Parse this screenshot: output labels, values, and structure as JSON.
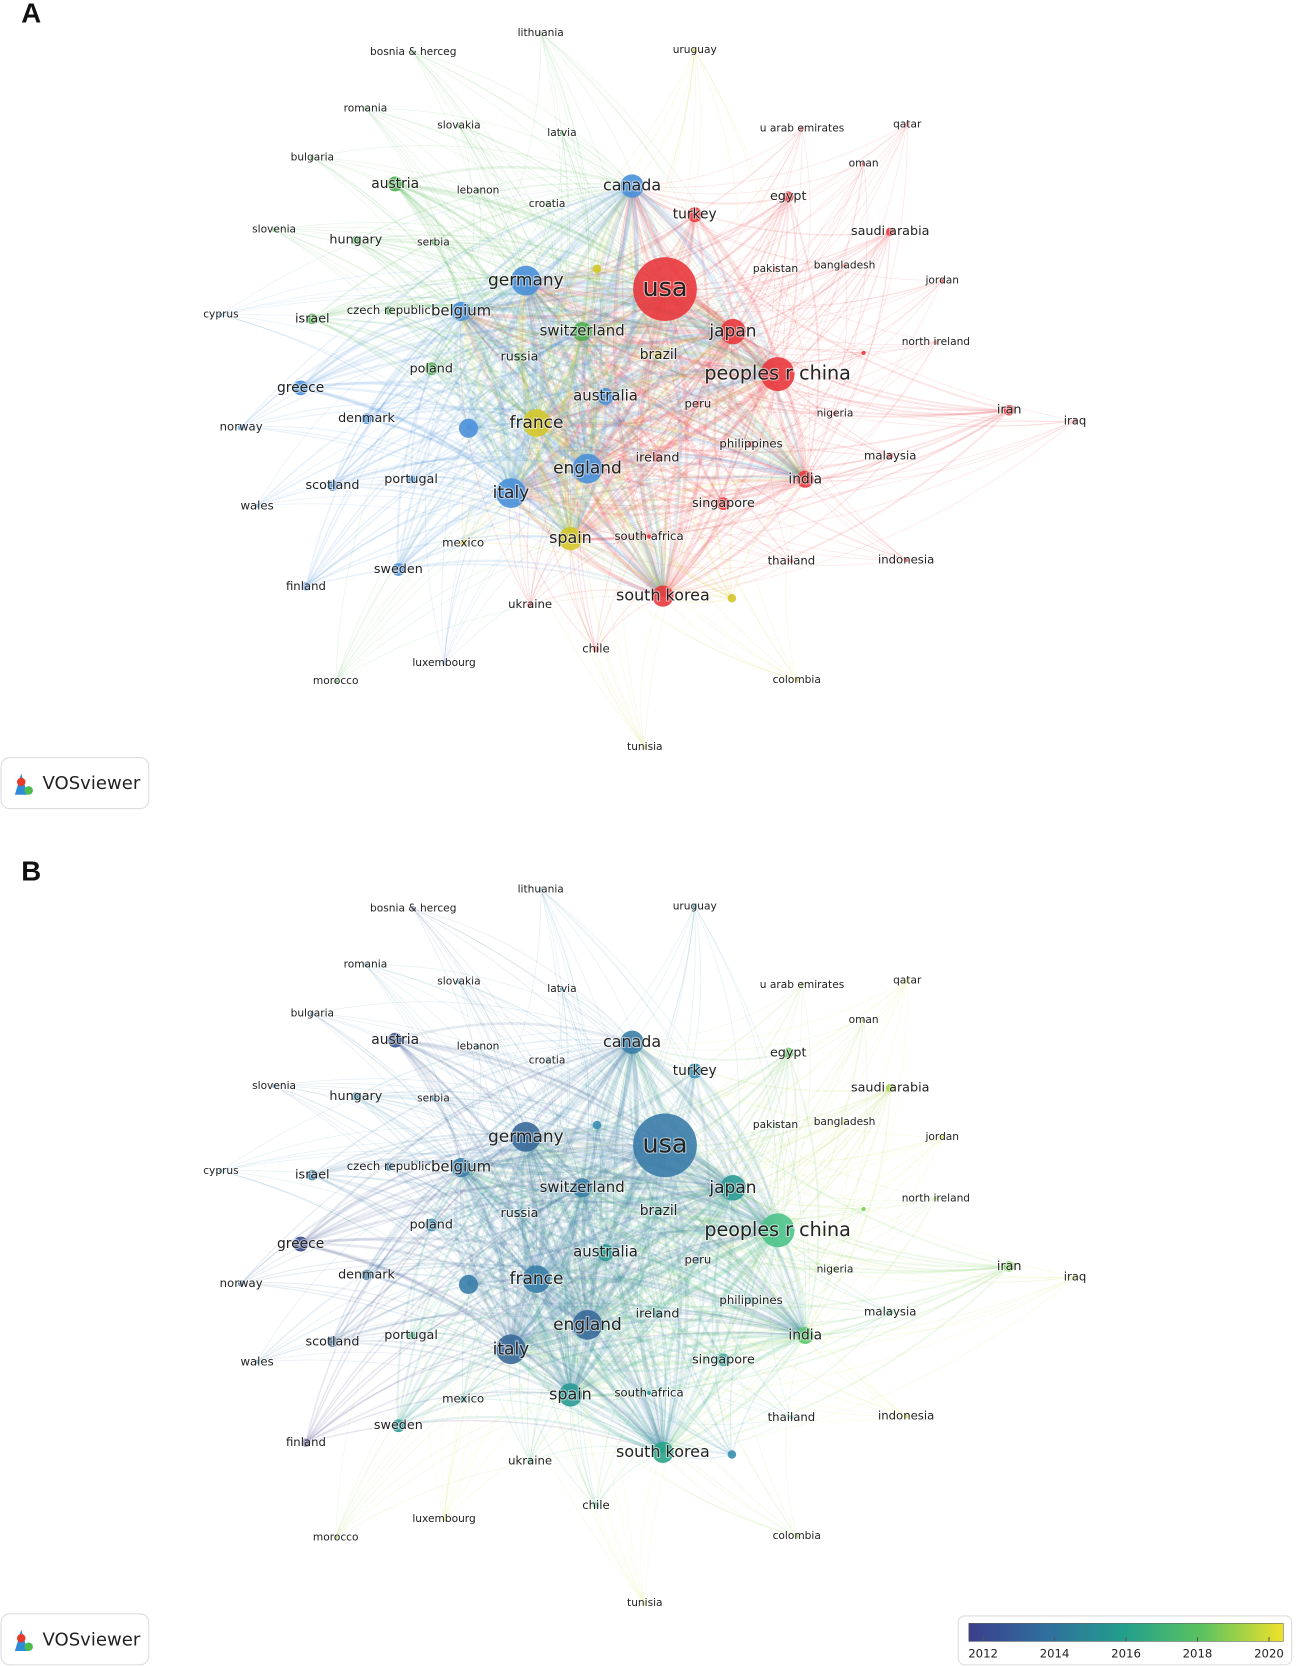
{
  "panel_a": {
    "letter": "A",
    "logo": "VOSviewer"
  },
  "panel_b": {
    "letter": "B",
    "logo": "VOSviewer",
    "colorbar": {
      "lim": [
        2011.6,
        2020.4
      ],
      "ticks": [
        2012,
        2014,
        2016,
        2018,
        2020
      ],
      "colors": [
        "#3b3f8c",
        "#2f6f9e",
        "#22a08b",
        "#5ec45e",
        "#f0e22a"
      ]
    }
  },
  "nodes": [
    {
      "label": "usa",
      "cluster_color": "#e8383d",
      "year_color": "#3b7ca8"
    },
    {
      "label": "peoples r china",
      "cluster_color": "#e8383d",
      "year_color": "#4cc38a"
    },
    {
      "label": "japan",
      "cluster_color": "#e8383d",
      "year_color": "#2c9a95"
    },
    {
      "label": "south korea",
      "cluster_color": "#e8383d",
      "year_color": "#2aa58a"
    },
    {
      "label": "india",
      "cluster_color": "#e8383d",
      "year_color": "#5cc66b"
    },
    {
      "label": "singapore",
      "cluster_color": "#e8383d",
      "year_color": "#3aa7a0"
    },
    {
      "label": "turkey",
      "cluster_color": "#e8383d",
      "year_color": "#3a8fb0"
    },
    {
      "label": "egypt",
      "cluster_color": "#e8383d",
      "year_color": "#6cc56b"
    },
    {
      "label": "saudi arabia",
      "cluster_color": "#e8383d",
      "year_color": "#a8d44a"
    },
    {
      "label": "iran",
      "cluster_color": "#e8383d",
      "year_color": "#7ccf5a"
    },
    {
      "label": "iraq",
      "cluster_color": "#e8383d",
      "year_color": "#c8da3e"
    },
    {
      "label": "malaysia",
      "cluster_color": "#e8383d",
      "year_color": "#4cb98a"
    },
    {
      "label": "nigeria",
      "cluster_color": "#e8383d",
      "year_color": "#8ccf55"
    },
    {
      "label": "philippines",
      "cluster_color": "#e8383d",
      "year_color": "#3aa7a0"
    },
    {
      "label": "peru",
      "cluster_color": "#e8383d",
      "year_color": "#3a8fb0"
    },
    {
      "label": "ireland",
      "cluster_color": "#e8383d",
      "year_color": "#2c9a95"
    },
    {
      "label": "south africa",
      "cluster_color": "#e8383d",
      "year_color": "#2c9a95"
    },
    {
      "label": "thailand",
      "cluster_color": "#e8383d",
      "year_color": "#3aa7a0"
    },
    {
      "label": "indonesia",
      "cluster_color": "#e8383d",
      "year_color": "#d9df3a"
    },
    {
      "label": "ukraine",
      "cluster_color": "#e8383d",
      "year_color": "#4cb98a"
    },
    {
      "label": "chile",
      "cluster_color": "#e8383d",
      "year_color": "#4cb98a"
    },
    {
      "label": "colombia",
      "cluster_color": "#d4c72a",
      "year_color": "#9bd24d"
    },
    {
      "label": "tunisia",
      "cluster_color": "#d4c72a",
      "year_color": "#d9df3a"
    },
    {
      "label": "luxembourg",
      "cluster_color": "#4a90d9",
      "year_color": "#d9df3a"
    },
    {
      "label": "morocco",
      "cluster_color": "#4caf50",
      "year_color": "#9bd24d"
    },
    {
      "label": "mexico",
      "cluster_color": "#d4c72a",
      "year_color": "#2c9a95"
    },
    {
      "label": "north ireland",
      "cluster_color": "#e8383d",
      "year_color": "#9bd24d"
    },
    {
      "label": "jordan",
      "cluster_color": "#e8383d",
      "year_color": "#d9df3a"
    },
    {
      "label": "bangladesh",
      "cluster_color": "#e8383d",
      "year_color": "#d9df3a"
    },
    {
      "label": "pakistan",
      "cluster_color": "#e8383d",
      "year_color": "#4cb98a"
    },
    {
      "label": "oman",
      "cluster_color": "#e8383d",
      "year_color": "#9bd24d"
    },
    {
      "label": "qatar",
      "cluster_color": "#e8383d",
      "year_color": "#d9df3a"
    },
    {
      "label": "u arab emirates",
      "cluster_color": "#e8383d",
      "year_color": "#9bd24d"
    },
    {
      "label": "uruguay",
      "cluster_color": "#d4c72a",
      "year_color": "#3a8fb0"
    },
    {
      "label": "lithuania",
      "cluster_color": "#4caf50",
      "year_color": "#3a8fb0"
    },
    {
      "label": "latvia",
      "cluster_color": "#4caf50",
      "year_color": "#3a8fb0"
    },
    {
      "label": "croatia",
      "cluster_color": "#4caf50",
      "year_color": "#3a8fb0"
    },
    {
      "label": "lebanon",
      "cluster_color": "#4caf50",
      "year_color": "#3a8fb0"
    },
    {
      "label": "serbia",
      "cluster_color": "#4caf50",
      "year_color": "#3a8fb0"
    },
    {
      "label": "slovakia",
      "cluster_color": "#4caf50",
      "year_color": "#3a8fb0"
    },
    {
      "label": "bosnia & herceg",
      "cluster_color": "#4caf50",
      "year_color": "#3b5a93"
    },
    {
      "label": "romania",
      "cluster_color": "#4caf50",
      "year_color": "#3a8fb0"
    },
    {
      "label": "bulgaria",
      "cluster_color": "#4caf50",
      "year_color": "#3a7ea8"
    },
    {
      "label": "austria",
      "cluster_color": "#4caf50",
      "year_color": "#3b5a93"
    },
    {
      "label": "slovenia",
      "cluster_color": "#4caf50",
      "year_color": "#3a7ea8"
    },
    {
      "label": "hungary",
      "cluster_color": "#4caf50",
      "year_color": "#3a8fb0"
    },
    {
      "label": "israel",
      "cluster_color": "#4caf50",
      "year_color": "#3a7ea8"
    },
    {
      "label": "czech republic",
      "cluster_color": "#4caf50",
      "year_color": "#3a7ea8"
    },
    {
      "label": "belgium",
      "cluster_color": "#4a90d9",
      "year_color": "#3a7ea8"
    },
    {
      "label": "germany",
      "cluster_color": "#4a90d9",
      "year_color": "#3a6a9a"
    },
    {
      "label": "switzerland",
      "cluster_color": "#4caf50",
      "year_color": "#3a7ea8"
    },
    {
      "label": "russia",
      "cluster_color": "#4caf50",
      "year_color": "#3a8fb0"
    },
    {
      "label": "brazil",
      "cluster_color": "#d4c72a",
      "year_color": "#2aa58a"
    },
    {
      "label": "poland",
      "cluster_color": "#4caf50",
      "year_color": "#3a8fb0"
    },
    {
      "label": "greece",
      "cluster_color": "#4a90d9",
      "year_color": "#3b4a8c"
    },
    {
      "label": "cyprus",
      "cluster_color": "#4a90d9",
      "year_color": "#3a8fb0"
    },
    {
      "label": "norway",
      "cluster_color": "#4a90d9",
      "year_color": "#3a6a9a"
    },
    {
      "label": "denmark",
      "cluster_color": "#4a90d9",
      "year_color": "#3a7ea8"
    },
    {
      "label": "france",
      "cluster_color": "#d4c72a",
      "year_color": "#3a7ea8"
    },
    {
      "label": "australia",
      "cluster_color": "#4a90d9",
      "year_color": "#2c9a95"
    },
    {
      "label": "england",
      "cluster_color": "#4a90d9",
      "year_color": "#3a6a9a"
    },
    {
      "label": "italy",
      "cluster_color": "#4a90d9",
      "year_color": "#3a6a9a"
    },
    {
      "label": "portugal",
      "cluster_color": "#4a90d9",
      "year_color": "#4cb98a"
    },
    {
      "label": "scotland",
      "cluster_color": "#4a90d9",
      "year_color": "#3a6a9a"
    },
    {
      "label": "wales",
      "cluster_color": "#4a90d9",
      "year_color": "#3a7ea8"
    },
    {
      "label": "sweden",
      "cluster_color": "#4a90d9",
      "year_color": "#2c9a95"
    },
    {
      "label": "finland",
      "cluster_color": "#4a90d9",
      "year_color": "#4b3e8c"
    },
    {
      "label": "spain",
      "cluster_color": "#d4c72a",
      "year_color": "#2c9a95"
    },
    {
      "label": "canada",
      "cluster_color": "#4a90d9",
      "year_color": "#3a7ea8"
    },
    {
      "label": null,
      "cluster_color": "#4a90d9",
      "year_color": "#3a7ea8"
    },
    {
      "label": null,
      "cluster_color": "#d4c72a",
      "year_color": "#3a8fb0"
    },
    {
      "label": null,
      "cluster_color": "#d4c72a",
      "year_color": "#3a8fb0"
    },
    {
      "label": null,
      "cluster_color": "#e8383d",
      "year_color": "#7ccf5a"
    }
  ]
}
